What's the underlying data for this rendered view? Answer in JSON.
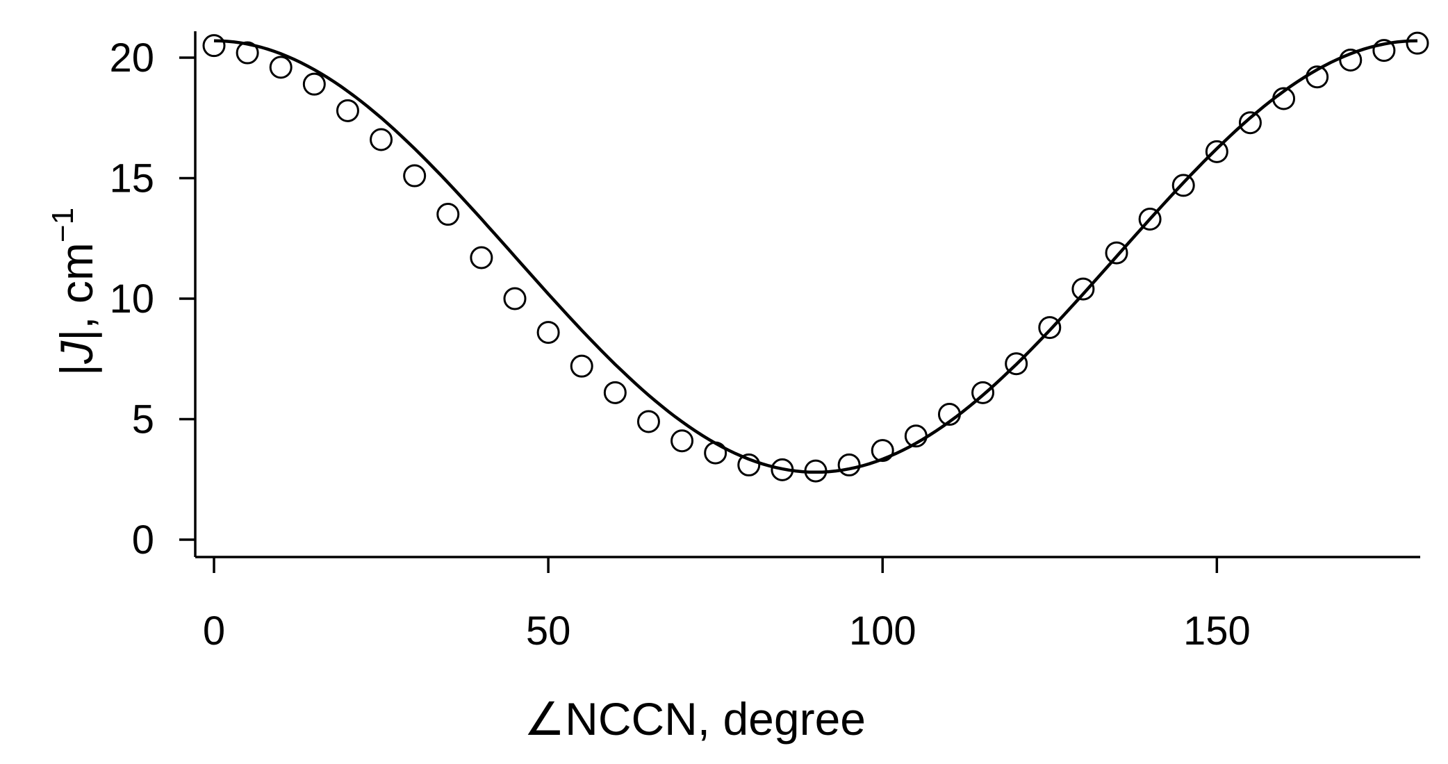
{
  "chart_data": {
    "type": "scatter",
    "title": "",
    "xlabel": "∠NCCN, degree",
    "ylabel": {
      "open_bar": "|",
      "italic": "J",
      "close_bar": "|",
      "unit": ", cm",
      "superscript": "−1"
    },
    "xlim": [
      0,
      180
    ],
    "ylim": [
      0,
      21
    ],
    "x_ticks": [
      0,
      50,
      100,
      150
    ],
    "y_ticks": [
      0,
      5,
      10,
      15,
      20
    ],
    "grid": false,
    "legend": "none",
    "series": [
      {
        "style": "open-circle",
        "x": [
          0,
          5,
          10,
          15,
          20,
          25,
          30,
          35,
          40,
          45,
          50,
          55,
          60,
          65,
          70,
          75,
          80,
          85,
          90,
          95,
          100,
          105,
          110,
          115,
          120,
          125,
          130,
          135,
          140,
          145,
          150,
          155,
          160,
          165,
          170,
          175,
          180
        ],
        "y": [
          20.5,
          20.2,
          19.6,
          18.9,
          17.8,
          16.6,
          15.1,
          13.5,
          11.7,
          10.0,
          8.6,
          7.2,
          6.1,
          4.9,
          4.1,
          3.6,
          3.1,
          2.9,
          2.85,
          3.1,
          3.7,
          4.3,
          5.2,
          6.1,
          7.3,
          8.8,
          10.4,
          11.9,
          13.3,
          14.7,
          16.1,
          17.3,
          18.3,
          19.2,
          19.9,
          20.3,
          20.6
        ]
      },
      {
        "style": "solid-line",
        "function": "J(t) = 11.75 + 8.95*cos(2t)",
        "x_range": [
          0,
          180
        ]
      }
    ]
  }
}
